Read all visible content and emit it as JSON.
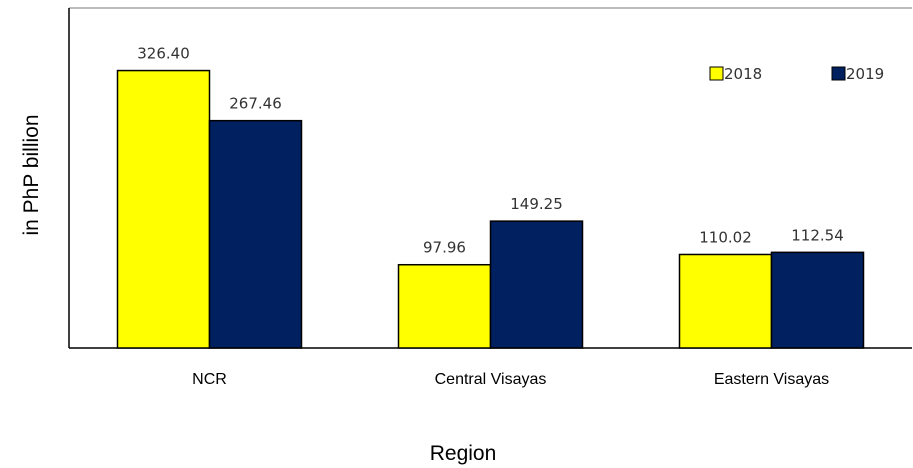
{
  "chart_data": {
    "type": "bar",
    "title": "",
    "xlabel": "Region",
    "ylabel": "in PhP billion",
    "categories": [
      "NCR",
      "Central Visayas",
      "Eastern Visayas"
    ],
    "series": [
      {
        "name": "2018",
        "values": [
          326.4,
          97.96,
          110.02
        ],
        "labels": [
          "326.40",
          "97.96",
          "110.02"
        ],
        "color": "#ffff00"
      },
      {
        "name": "2019",
        "values": [
          267.46,
          149.25,
          112.54
        ],
        "labels": [
          "267.46",
          "149.25",
          "112.54"
        ],
        "color": "#002060"
      }
    ],
    "ylim": [
      0,
      400
    ],
    "grid": false,
    "legend": "top-right",
    "data_labels": true
  }
}
